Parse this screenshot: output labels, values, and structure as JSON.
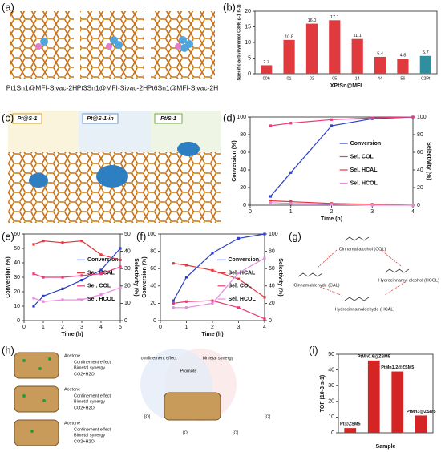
{
  "panels": [
    "(a)",
    "(b)",
    "(c)",
    "(d)",
    "(e)",
    "(f)",
    "(g)",
    "(h)",
    "(i)"
  ],
  "panel_a": {
    "captions": [
      "Pt1Sn1@MFI-Sivac-2H",
      "Pt3Sn1@MFI-Sivac-2H",
      "Pt6Sn1@MFI-Sivac-2H"
    ]
  },
  "panel_c": {
    "labels": [
      "Pt@S-1",
      "Pt@S-1-in",
      "Pt/S-1"
    ]
  },
  "panel_g": {
    "labels": [
      "Cinnamal alcohol (COL)",
      "Cinnamaldehyde (CAL)",
      "Hydrocinnamyl alcohol (HCOL)",
      "Hydrocinnamaldehyde (HCAL)"
    ]
  },
  "panel_h": {
    "labels": [
      "Acetone",
      "Confinement effect",
      "Bimetal synergy",
      "CO2+H2O",
      "Acetone",
      "Confinement effect",
      "Bimetal synergy",
      "CO2+H2O",
      "Acetone",
      "Confinement effect",
      "Bimetal synergy",
      "CO2+H2O",
      "confinement effect",
      "bimetal synergy",
      "Promote",
      "[O]",
      "[O]",
      "[O]",
      "[O]"
    ]
  },
  "chart_data": [
    {
      "type": "bar",
      "ylabel": "Specific activity(mmol C3H6 g-1 h-1)",
      "xlabel": "XPtSn@MFI",
      "categories": [
        "006",
        "01",
        "02",
        "05",
        "14",
        "44",
        "56",
        "02Pt"
      ],
      "values": [
        2.7,
        10.8,
        16,
        17.1,
        11.1,
        5.4,
        4.8,
        5.7
      ],
      "value_labels": [
        "2.7",
        "10.8",
        "16.0",
        "17.1",
        "11.1",
        "5.4",
        "4.8",
        "5.7"
      ],
      "colors": [
        "#e0393e",
        "#e0393e",
        "#e0393e",
        "#e0393e",
        "#e0393e",
        "#e0393e",
        "#e0393e",
        "#2f8fa0"
      ],
      "ylim": [
        0,
        20
      ],
      "yticks": [
        0,
        5,
        10,
        15,
        20
      ]
    },
    {
      "type": "line",
      "xlabel": "Time (h)",
      "ylabel": "Conversion (%)",
      "y2label": "Selectivity (%)",
      "x": [
        0.5,
        1,
        2,
        3,
        4
      ],
      "xlim": [
        0,
        4
      ],
      "xticks": [
        0,
        1,
        2,
        3,
        4
      ],
      "ylim": [
        0,
        100
      ],
      "yticks": [
        0,
        20,
        40,
        60,
        80,
        100
      ],
      "y2lim": [
        0,
        100
      ],
      "y2ticks": [
        0,
        20,
        40,
        60,
        80,
        100
      ],
      "series": [
        {
          "name": "Conversion",
          "color": "#2b3fc9",
          "values": [
            10,
            37,
            90,
            98,
            100
          ]
        },
        {
          "name": "Sel. COL",
          "color": "#e8397a",
          "axis": "y2",
          "values": [
            90,
            93,
            97,
            99,
            100
          ]
        },
        {
          "name": "Sel. HCAL",
          "color": "#e0393e",
          "axis": "y2",
          "values": [
            5,
            4,
            2,
            1,
            0
          ]
        },
        {
          "name": "Sel. HCOL",
          "color": "#e68be0",
          "axis": "y2",
          "values": [
            3,
            2,
            1,
            0,
            0
          ]
        }
      ]
    },
    {
      "type": "line",
      "xlabel": "Time (h)",
      "ylabel": "Conversion (%)",
      "y2label": "Selectivity (%)",
      "x": [
        0.5,
        1,
        2,
        3,
        4,
        5
      ],
      "xlim": [
        0,
        5
      ],
      "xticks": [
        0,
        1,
        2,
        3,
        4,
        5
      ],
      "ylim": [
        0,
        60
      ],
      "yticks": [
        0,
        10,
        20,
        30,
        40,
        50,
        60
      ],
      "y2lim": [
        0,
        50
      ],
      "y2ticks": [
        0,
        10,
        20,
        30,
        40,
        50
      ],
      "series": [
        {
          "name": "Conversion",
          "color": "#2b3fc9",
          "values": [
            10,
            17,
            22,
            28,
            35,
            50
          ]
        },
        {
          "name": "Sel. HCAL",
          "color": "#e0393e",
          "axis": "y2",
          "values": [
            44,
            46,
            45,
            46,
            38,
            35
          ]
        },
        {
          "name": "Sel. COL",
          "color": "#e8397a",
          "axis": "y2",
          "values": [
            27,
            25,
            25,
            26,
            27,
            31
          ]
        },
        {
          "name": "Sel. HCOL",
          "color": "#e68be0",
          "axis": "y2",
          "values": [
            13,
            11,
            12,
            12,
            15,
            19
          ]
        }
      ]
    },
    {
      "type": "line",
      "xlabel": "Time (h)",
      "ylabel": "Conversion (%)",
      "y2label": "Selectivity (%)",
      "x": [
        0.5,
        1,
        2,
        3,
        4
      ],
      "xlim": [
        0,
        4
      ],
      "xticks": [
        0,
        1,
        2,
        3,
        4
      ],
      "ylim": [
        0,
        100
      ],
      "yticks": [
        0,
        20,
        40,
        60,
        80,
        100
      ],
      "y2lim": [
        0,
        100
      ],
      "y2ticks": [
        0,
        20,
        40,
        60,
        80,
        100
      ],
      "series": [
        {
          "name": "Conversion",
          "color": "#2b3fc9",
          "values": [
            23,
            50,
            78,
            95,
            100
          ]
        },
        {
          "name": "Sel. HCAL",
          "color": "#e0393e",
          "axis": "y2",
          "values": [
            66,
            64,
            58,
            48,
            27
          ]
        },
        {
          "name": "Sel. COL",
          "color": "#e8397a",
          "axis": "y2",
          "values": [
            20,
            22,
            23,
            15,
            2
          ]
        },
        {
          "name": "Sel. HCOL",
          "color": "#e68be0",
          "axis": "y2",
          "values": [
            15,
            15,
            20,
            55,
            72
          ]
        }
      ]
    },
    {
      "type": "bar",
      "ylabel": "TOF (10-3 s-1)",
      "xlabel": "Sample",
      "labels_on_bars": true,
      "categories": [
        "Pt@ZSM5",
        "PtMn0.6@ZSM5",
        "PtMn1.2@ZSM5",
        "PtMn3@ZSM5"
      ],
      "values": [
        3,
        46,
        39,
        11
      ],
      "colors": [
        "#d42424",
        "#d42424",
        "#d42424",
        "#d42424"
      ],
      "ylim": [
        0,
        50
      ],
      "yticks": [
        0,
        10,
        20,
        30,
        40,
        50
      ]
    }
  ]
}
